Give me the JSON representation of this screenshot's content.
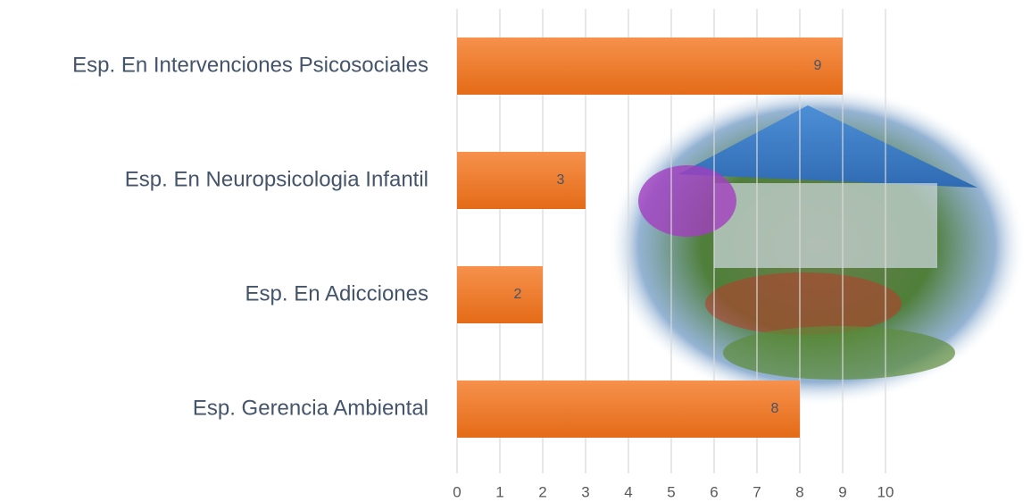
{
  "chart_data": {
    "type": "barh",
    "categories": [
      "Esp. En Intervenciones Psicosociales",
      "Esp. En Neuropsicologia Infantil",
      "Esp. En Adicciones",
      "Esp. Gerencia Ambiental"
    ],
    "values": [
      9,
      3,
      2,
      8
    ],
    "color": "#ed7d31",
    "xlim": [
      0,
      10
    ],
    "xticks": [
      0,
      1,
      2,
      3,
      4,
      5,
      6,
      7,
      8,
      9,
      10
    ],
    "grid": true
  }
}
